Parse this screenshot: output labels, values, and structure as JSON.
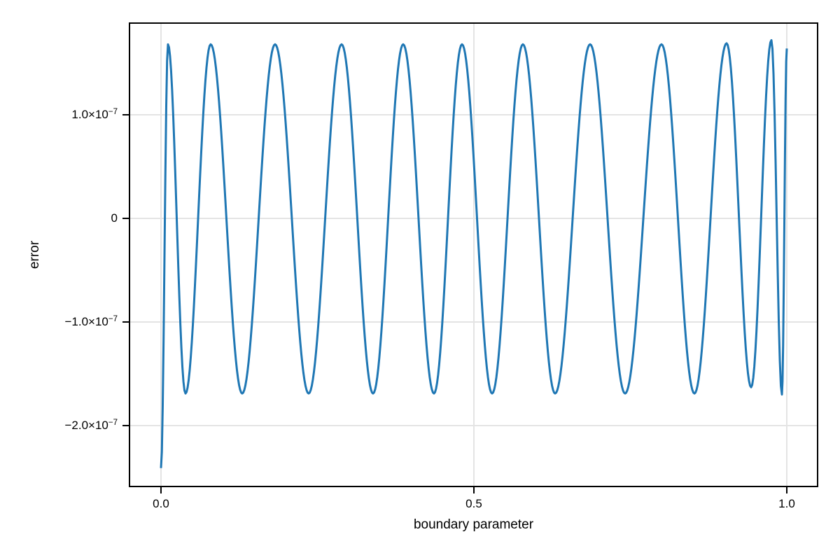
{
  "figure": {
    "background": "#ffffff"
  },
  "chart_data": {
    "type": "line",
    "title": "",
    "xlabel": "boundary parameter",
    "ylabel": "error",
    "xlim": [
      -0.0503,
      1.0492
    ],
    "ylim": [
      -2.588e-07,
      1.885e-07
    ],
    "grid": true,
    "legend_position": "none",
    "xticks": [
      {
        "value": 0.0,
        "label": "0.0"
      },
      {
        "value": 0.5,
        "label": "0.5"
      },
      {
        "value": 1.0,
        "label": "1.0"
      }
    ],
    "yticks": [
      {
        "value": 1e-07,
        "base": "1.0×10",
        "exp": "−7"
      },
      {
        "value": 0,
        "base": "0",
        "exp": ""
      },
      {
        "value": -1e-07,
        "base": "−1.0×10",
        "exp": "−7"
      },
      {
        "value": -2e-07,
        "base": "−2.0×10",
        "exp": "−7"
      }
    ],
    "series": [
      {
        "name": "error",
        "color": "#1f77b4",
        "line_width": 3,
        "interpolation": "cosine-between-extrema",
        "anchors_x": [
          0.0,
          0.0112,
          0.0392,
          0.0794,
          0.1298,
          0.1823,
          0.236,
          0.2886,
          0.3389,
          0.387,
          0.4362,
          0.481,
          0.5291,
          0.5783,
          0.6298,
          0.6857,
          0.7416,
          0.7998,
          0.8524,
          0.9038,
          0.943,
          0.9754,
          0.9922,
          1.0
        ],
        "anchors_y": [
          -2.41e-07,
          1.68e-07,
          -1.69e-07,
          1.68e-07,
          -1.69e-07,
          1.68e-07,
          -1.69e-07,
          1.68e-07,
          -1.69e-07,
          1.68e-07,
          -1.69e-07,
          1.68e-07,
          -1.69e-07,
          1.68e-07,
          -1.69e-07,
          1.68e-07,
          -1.69e-07,
          1.68e-07,
          -1.69e-07,
          1.69e-07,
          -1.63e-07,
          1.72e-07,
          -1.7e-07,
          1.64e-07
        ]
      }
    ],
    "colors": {
      "grid": "#e4e4e4",
      "spine": "#000000",
      "text": "#000000"
    }
  }
}
